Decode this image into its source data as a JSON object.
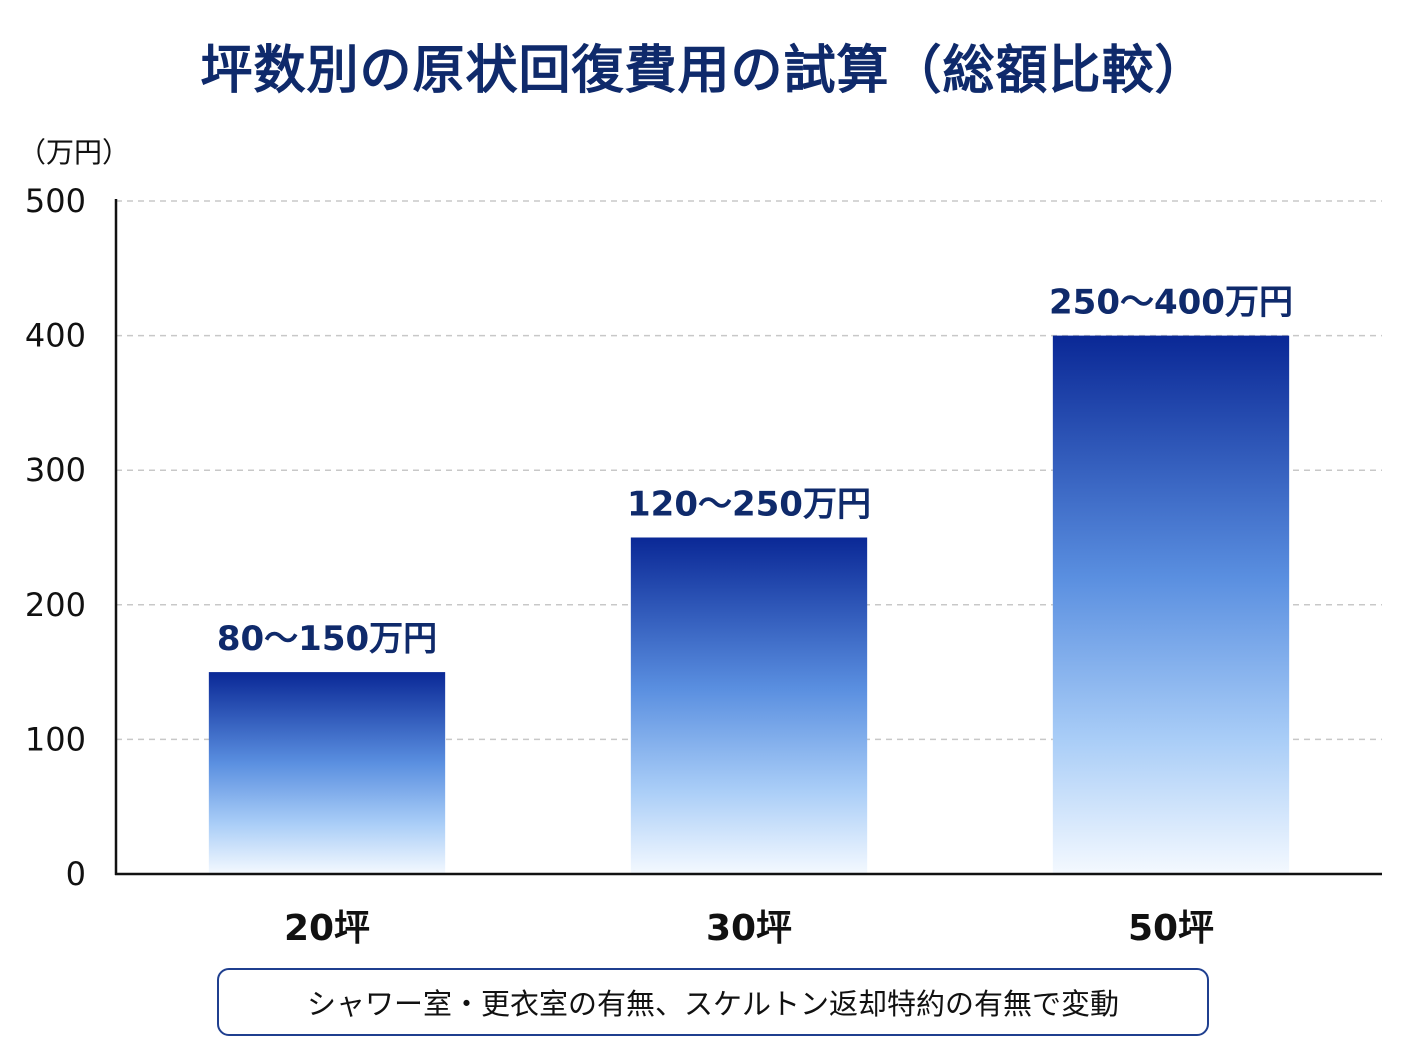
{
  "title": "坪数別の原状回復費用の試算（総額比較）",
  "note": "シャワー室・更衣室の有無、スケルトン返却特約の有無で変動",
  "chart_data": {
    "type": "bar",
    "title": "坪数別の原状回復費用の試算（総額比較）",
    "ylabel": "（万円）",
    "xlabel": "",
    "ylim": [
      0,
      500
    ],
    "yticks": [
      0,
      100,
      200,
      300,
      400,
      500
    ],
    "grid": true,
    "categories": [
      "20坪",
      "30坪",
      "50坪"
    ],
    "values": [
      150,
      250,
      400
    ],
    "ranges": [
      [
        80,
        150
      ],
      [
        120,
        250
      ],
      [
        250,
        400
      ]
    ],
    "data_labels": [
      "80〜150万円",
      "120〜250万円",
      "250〜400万円"
    ],
    "colors": {
      "bar_top": "#0a2896",
      "bar_mid": "#5a8fe0",
      "bar_bottom": "#f4f9ff",
      "label": "#0f2a6b",
      "grid": "#c8c8c8",
      "axis": "#111111"
    }
  }
}
